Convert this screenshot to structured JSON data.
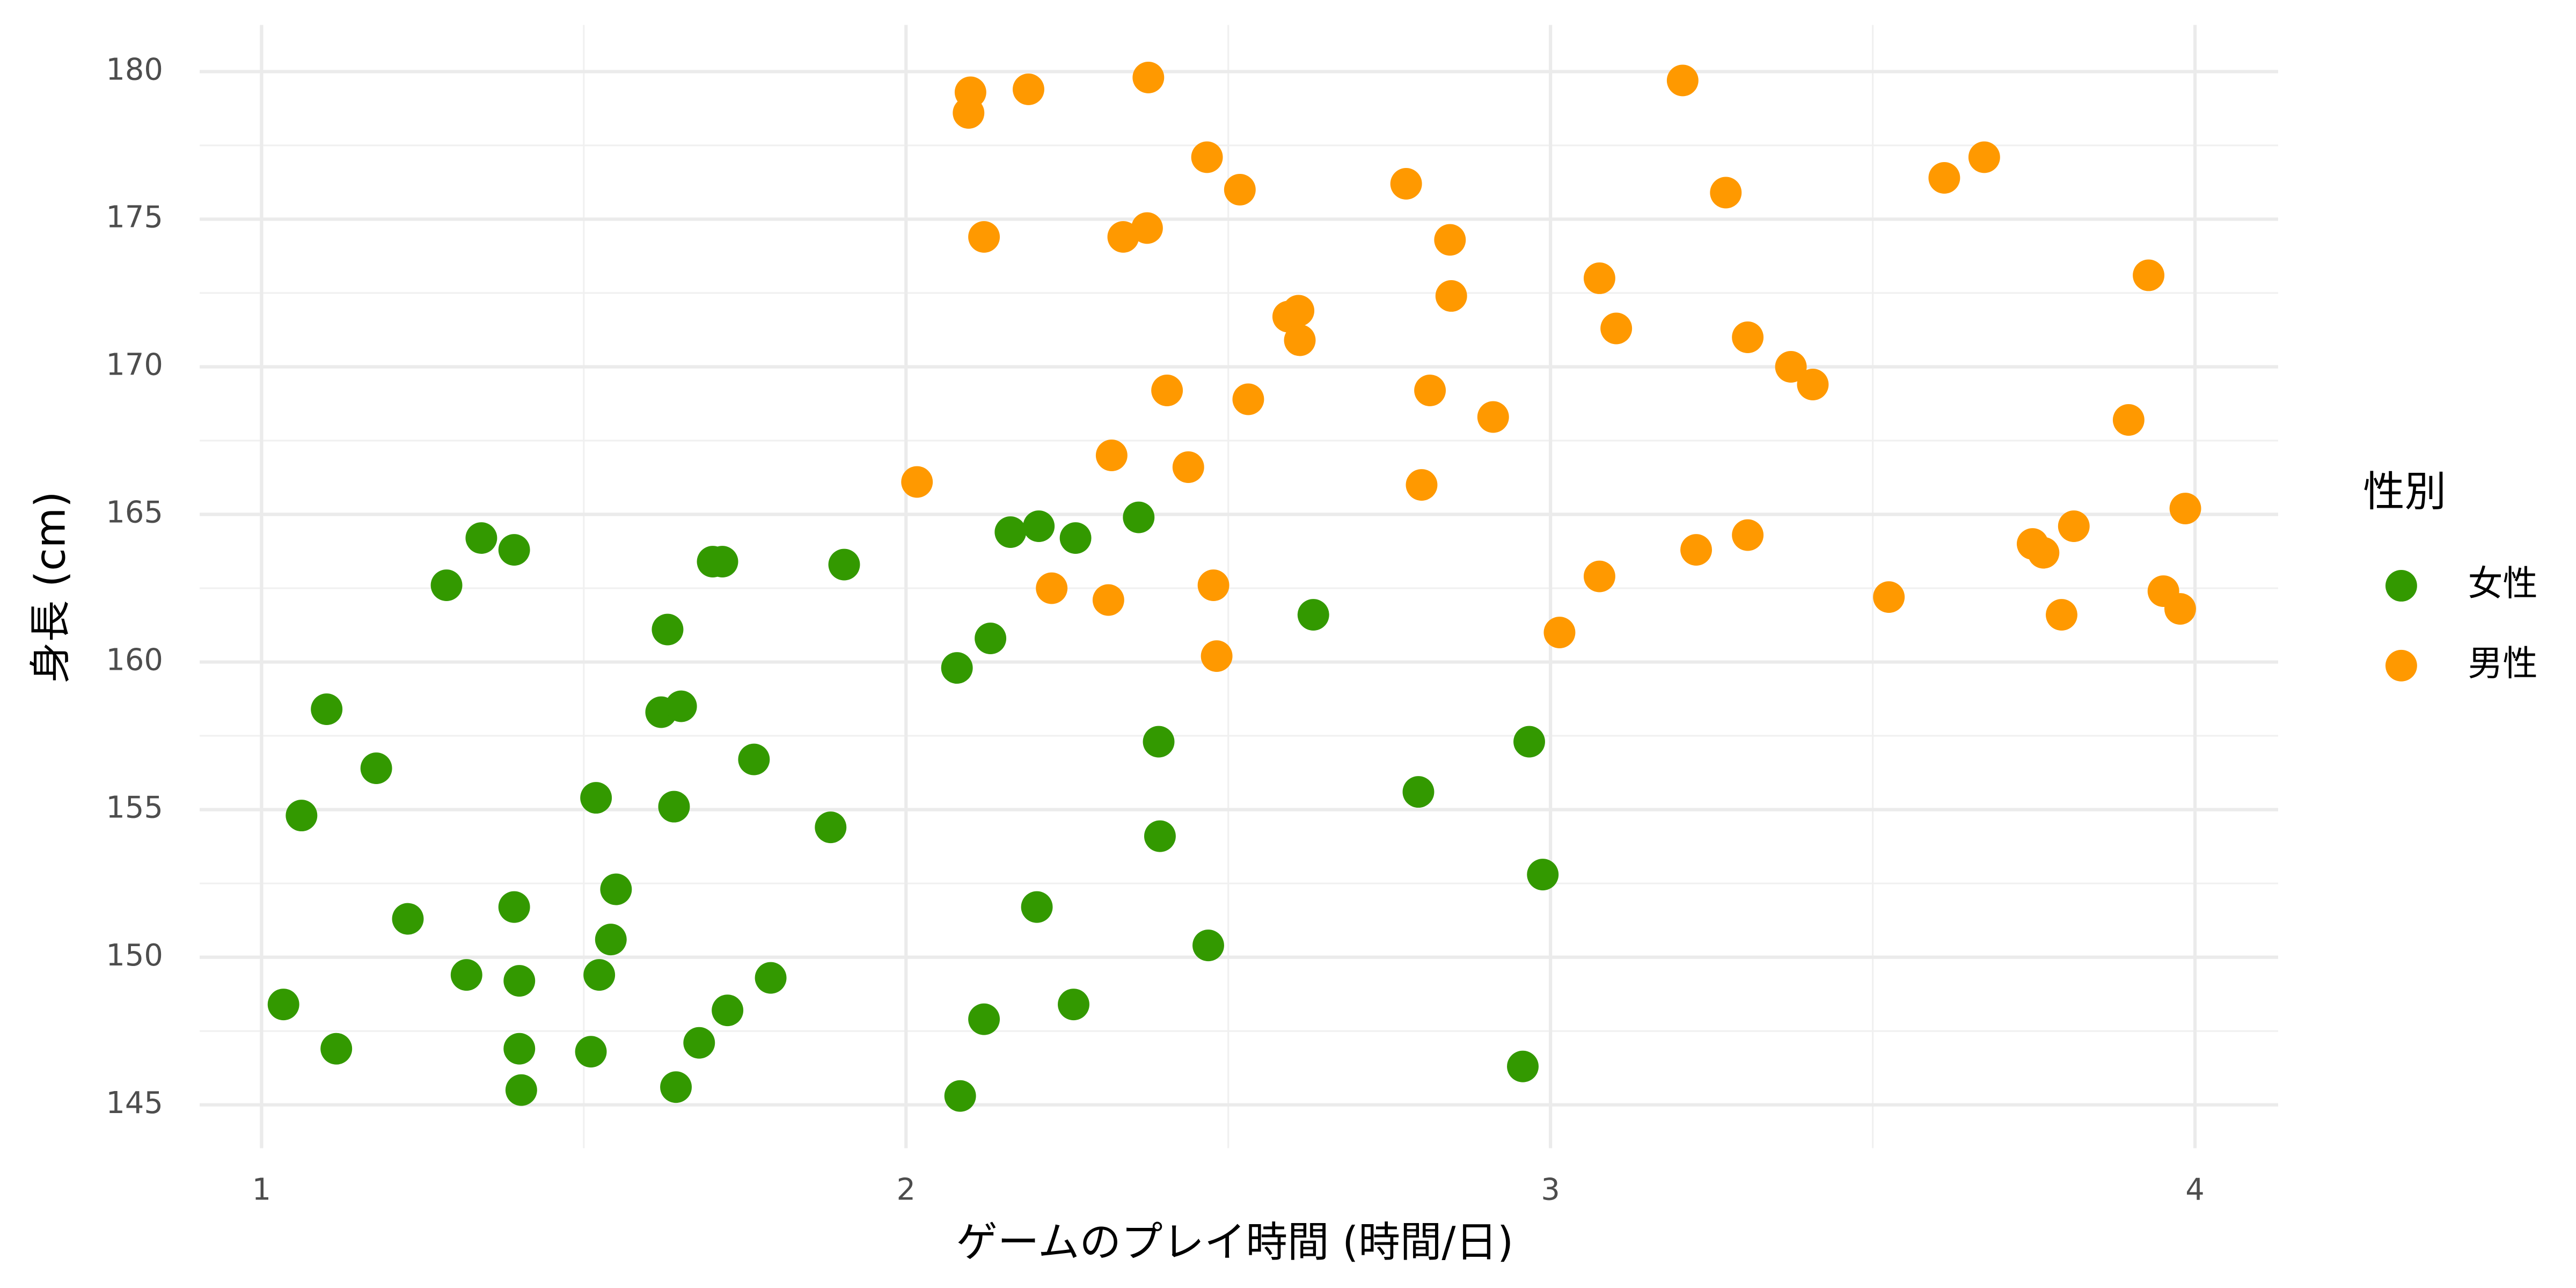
{
  "chart_data": {
    "type": "scatter",
    "x_label": "ゲームのプレイ時間 (時間/日)",
    "y_label": "身長 (cm)",
    "legend_title": "性別",
    "xlim": [
      0.904,
      4.129
    ],
    "ylim": [
      143.53,
      181.58
    ],
    "xticks": [
      1,
      2,
      3,
      4
    ],
    "yticks": [
      145,
      150,
      155,
      160,
      165,
      170,
      175,
      180
    ],
    "grid": true,
    "legend": "right",
    "series": [
      {
        "name": "女性",
        "color": "#339900",
        "x": [
          1.034,
          1.062,
          1.101,
          1.116,
          1.178,
          1.227,
          1.287,
          1.318,
          1.341,
          1.392,
          1.392,
          1.4,
          1.4,
          1.403,
          1.511,
          1.519,
          1.524,
          1.542,
          1.55,
          1.62,
          1.63,
          1.64,
          1.643,
          1.651,
          1.679,
          1.7,
          1.715,
          1.723,
          1.764,
          1.79,
          1.883,
          1.904,
          2.079,
          2.084,
          2.121,
          2.131,
          2.162,
          2.203,
          2.206,
          2.26,
          2.263,
          2.361,
          2.392,
          2.394,
          2.469,
          2.632,
          2.795,
          2.957,
          2.967,
          2.988
        ],
        "values": [
          148.4,
          154.8,
          158.4,
          146.9,
          156.4,
          151.3,
          162.6,
          149.4,
          164.2,
          163.8,
          151.7,
          149.2,
          146.9,
          145.5,
          146.8,
          155.4,
          149.4,
          150.6,
          152.3,
          158.3,
          161.1,
          155.1,
          145.6,
          158.5,
          147.1,
          163.4,
          163.4,
          148.2,
          156.7,
          149.3,
          154.4,
          163.3,
          159.8,
          145.3,
          147.9,
          160.8,
          164.4,
          151.7,
          164.6,
          148.4,
          164.2,
          164.9,
          157.3,
          154.1,
          150.4,
          161.6,
          155.6,
          146.3,
          157.3,
          152.8
        ]
      },
      {
        "name": "男性",
        "color": "#ff9900",
        "x": [
          2.017,
          2.097,
          2.1,
          2.121,
          2.19,
          2.226,
          2.314,
          2.319,
          2.337,
          2.374,
          2.376,
          2.405,
          2.438,
          2.467,
          2.477,
          2.482,
          2.518,
          2.531,
          2.593,
          2.609,
          2.611,
          2.776,
          2.8,
          2.813,
          2.844,
          2.846,
          2.911,
          3.014,
          3.076,
          3.076,
          3.102,
          3.205,
          3.226,
          3.272,
          3.306,
          3.306,
          3.373,
          3.407,
          3.525,
          3.611,
          3.673,
          3.748,
          3.765,
          3.793,
          3.812,
          3.897,
          3.928,
          3.951,
          3.977,
          3.985
        ],
        "values": [
          166.1,
          178.6,
          179.3,
          174.4,
          179.4,
          162.5,
          162.1,
          167.0,
          174.4,
          174.7,
          179.8,
          169.2,
          166.6,
          177.1,
          162.6,
          160.2,
          176.0,
          168.9,
          171.7,
          171.9,
          170.9,
          176.2,
          166.0,
          169.2,
          174.3,
          172.4,
          168.3,
          161.0,
          173.0,
          162.9,
          171.3,
          179.7,
          163.8,
          175.9,
          164.3,
          171.0,
          170.0,
          169.4,
          162.2,
          176.4,
          177.1,
          164.0,
          163.7,
          161.6,
          164.6,
          168.2,
          173.1,
          162.4,
          161.8,
          165.2
        ]
      }
    ]
  }
}
